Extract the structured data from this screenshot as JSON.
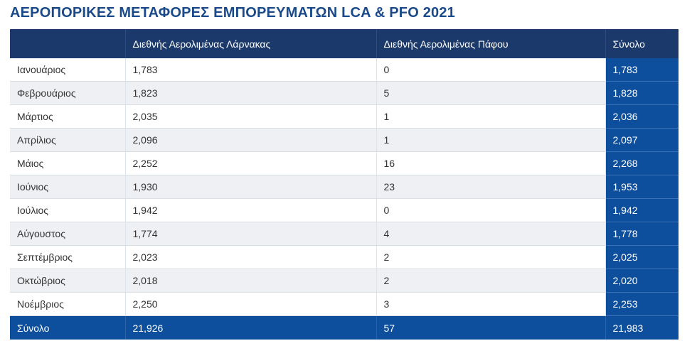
{
  "title": "ΑΕΡΟΠΟΡΙΚΕΣ ΜΕΤΑΦΟΡΕΣ ΕΜΠΟΡΕΥΜΑΤΩΝ LCA & PFO 2021",
  "table": {
    "headers": [
      "",
      "Διεθνής Αερολιμένας Λάρνακας",
      "Διεθνής Αερολιμένας Πάφου",
      "Σύνολο"
    ],
    "rows": [
      [
        "Ιανουάριος",
        "1,783",
        "0",
        "1,783"
      ],
      [
        "Φεβρουάριος",
        "1,823",
        "5",
        "1,828"
      ],
      [
        "Μάρτιος",
        "2,035",
        "1",
        "2,036"
      ],
      [
        "Απρίλιος",
        "2,096",
        "1",
        "2,097"
      ],
      [
        "Μάιος",
        "2,252",
        "16",
        "2,268"
      ],
      [
        "Ιούνιος",
        "1,930",
        "23",
        "1,953"
      ],
      [
        "Ιούλιος",
        "1,942",
        "0",
        "1,942"
      ],
      [
        "Αύγουστος",
        "1,774",
        "4",
        "1,778"
      ],
      [
        "Σεπτέμβριος",
        "2,023",
        "2",
        "2,025"
      ],
      [
        "Οκτώβριος",
        "2,018",
        "2",
        "2,020"
      ],
      [
        "Νοέμβριος",
        "2,250",
        "3",
        "2,253"
      ]
    ],
    "footer": [
      "Σύνολο",
      "21,926",
      "57",
      "21,983"
    ]
  }
}
